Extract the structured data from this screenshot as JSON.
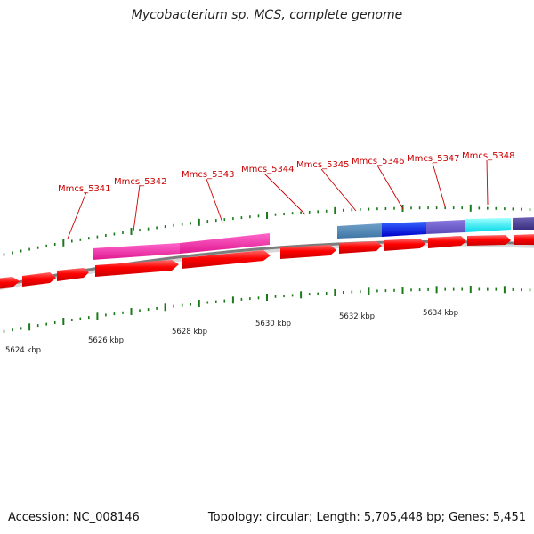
{
  "title": "Mycobacterium sp. MCS, complete genome",
  "footer": {
    "accession": "Accession: NC_008146",
    "summary": "Topology: circular; Length: 5,705,448 bp; Genes: 5,451"
  },
  "scale": {
    "labels": [
      "5624 kbp",
      "5626 kbp",
      "5628 kbp",
      "5630 kbp",
      "5632 kbp",
      "5634 kbp"
    ]
  },
  "gene_labels": [
    "Mmcs_5341",
    "Mmcs_5342",
    "Mmcs_5343",
    "Mmcs_5344",
    "Mmcs_5345",
    "Mmcs_5346",
    "Mmcs_5347",
    "Mmcs_5348"
  ],
  "colors": {
    "cds": "#ff0000",
    "label": "#cc0000",
    "backbone": "#808080",
    "tick": "#1a7a1a",
    "magenta": "#ff1aa8",
    "steelblue": "#4682b4",
    "blue": "#0000ee",
    "slateblue": "#6a5acd",
    "cyan": "#00ffff",
    "darkslate": "#483d8b"
  }
}
